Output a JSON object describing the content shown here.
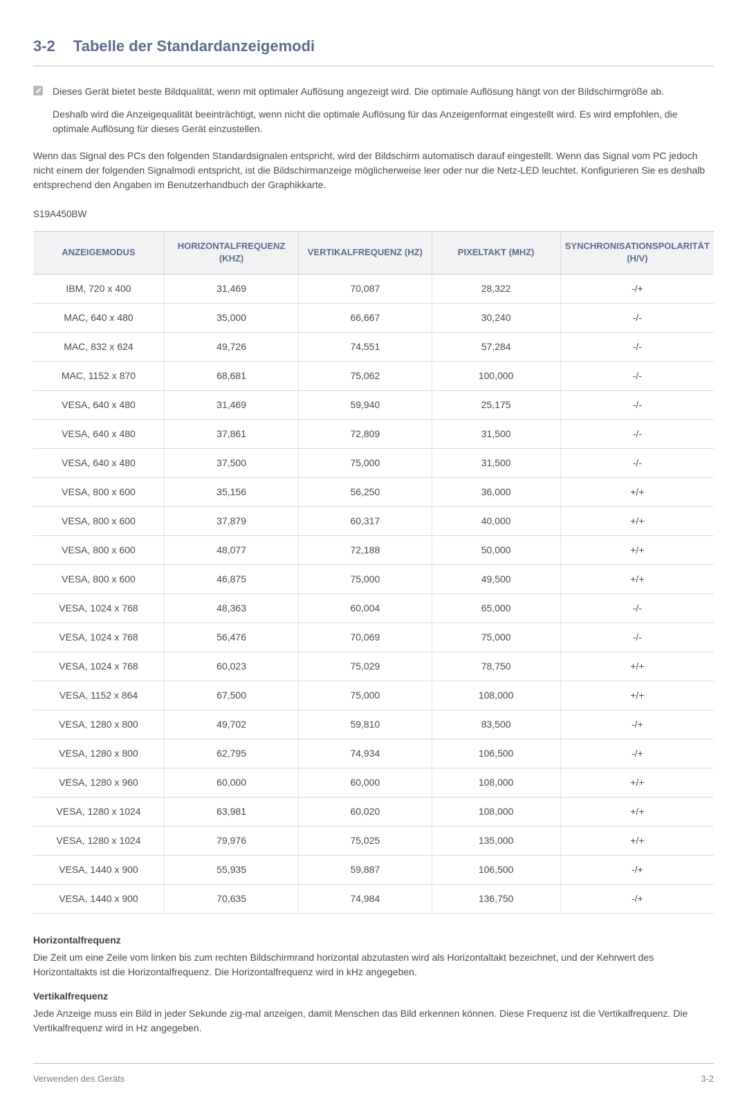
{
  "section": {
    "number": "3-2",
    "title": "Tabelle der Standardanzeigemodi"
  },
  "note": {
    "p1": "Dieses Gerät bietet beste Bildqualität, wenn mit optimaler Auflösung angezeigt wird. Die optimale Auflösung hängt von der Bildschirmgröße ab.",
    "p2": "Deshalb wird die Anzeigequalität beeinträchtigt, wenn nicht die optimale Auflösung für das Anzeigenformat eingestellt wird. Es wird empfohlen, die optimale Auflösung für dieses Gerät einzustellen."
  },
  "intro": "Wenn das Signal des PCs den folgenden Standardsignalen entspricht, wird der Bildschirm automatisch darauf eingestellt. Wenn das Signal vom PC jedoch nicht einem der folgenden Signalmodi entspricht, ist die Bildschirmanzeige möglicherweise leer oder nur die Netz-LED leuchtet. Konfigurieren Sie es deshalb entsprechend den Angaben im Benutzerhandbuch der Graphikkarte.",
  "model": "S19A450BW",
  "table": {
    "columns": [
      "ANZEIGEMODUS",
      "HORIZONTALFREQUENZ (KHZ)",
      "VERTIKALFREQUENZ (HZ)",
      "PIXELTAKT (MHZ)",
      "SYNCHRONISATIONSPOLARITÄT (H/V)"
    ],
    "col_widths": [
      "20%",
      "20%",
      "20%",
      "20%",
      "20%"
    ],
    "rows": [
      [
        "IBM, 720 x 400",
        "31,469",
        "70,087",
        "28,322",
        "-/+"
      ],
      [
        "MAC, 640 x 480",
        "35,000",
        "66,667",
        "30,240",
        "-/-"
      ],
      [
        "MAC, 832 x 624",
        "49,726",
        "74,551",
        "57,284",
        "-/-"
      ],
      [
        "MAC, 1152 x 870",
        "68,681",
        "75,062",
        "100,000",
        "-/-"
      ],
      [
        "VESA, 640 x 480",
        "31,469",
        "59,940",
        "25,175",
        "-/-"
      ],
      [
        "VESA, 640 x 480",
        "37,861",
        "72,809",
        "31,500",
        "-/-"
      ],
      [
        "VESA, 640 x 480",
        "37,500",
        "75,000",
        "31,500",
        "-/-"
      ],
      [
        "VESA, 800 x 600",
        "35,156",
        "56,250",
        "36,000",
        "+/+"
      ],
      [
        "VESA, 800 x 600",
        "37,879",
        "60,317",
        "40,000",
        "+/+"
      ],
      [
        "VESA, 800 x 600",
        "48,077",
        "72,188",
        "50,000",
        "+/+"
      ],
      [
        "VESA, 800 x 600",
        "46,875",
        "75,000",
        "49,500",
        "+/+"
      ],
      [
        "VESA, 1024 x 768",
        "48,363",
        "60,004",
        "65,000",
        "-/-"
      ],
      [
        "VESA, 1024 x 768",
        "56,476",
        "70,069",
        "75,000",
        "-/-"
      ],
      [
        "VESA, 1024 x 768",
        "60,023",
        "75,029",
        "78,750",
        "+/+"
      ],
      [
        "VESA, 1152 x 864",
        "67,500",
        "75,000",
        "108,000",
        "+/+"
      ],
      [
        "VESA, 1280 x 800",
        "49,702",
        "59,810",
        "83,500",
        "-/+"
      ],
      [
        "VESA, 1280 x 800",
        "62,795",
        "74,934",
        "106,500",
        "-/+"
      ],
      [
        "VESA, 1280 x 960",
        "60,000",
        "60,000",
        "108,000",
        "+/+"
      ],
      [
        "VESA, 1280 x 1024",
        "63,981",
        "60,020",
        "108,000",
        "+/+"
      ],
      [
        "VESA, 1280 x 1024",
        "79,976",
        "75,025",
        "135,000",
        "+/+"
      ],
      [
        "VESA, 1440 x 900",
        "55,935",
        "59,887",
        "106,500",
        "-/+"
      ],
      [
        "VESA, 1440 x 900",
        "70,635",
        "74,984",
        "136,750",
        "-/+"
      ]
    ]
  },
  "definitions": {
    "h_title": "Horizontalfrequenz",
    "h_text": "Die Zeit um eine Zeile vom linken bis zum rechten Bildschirmrand horizontal abzutasten wird als Horizontaltakt bezeichnet, und der Kehrwert des Horizontaltakts ist die Horizontalfrequenz. Die Horizontalfrequenz wird in kHz angegeben.",
    "v_title": "Vertikalfrequenz",
    "v_text": "Jede Anzeige muss ein Bild in jeder Sekunde zig-mal anzeigen, damit Menschen das Bild erkennen können. Diese Frequenz ist die Vertikalfrequenz. Die Vertikalfrequenz wird in Hz angegeben."
  },
  "footer": {
    "left": "Verwenden des Geräts",
    "right": "3-2"
  },
  "colors": {
    "heading": "#5b6b8c",
    "text": "#4a4a4a",
    "border": "#c0c0c0",
    "th_bg": "#f2f2f4",
    "row_border": "#d8d8d8"
  }
}
